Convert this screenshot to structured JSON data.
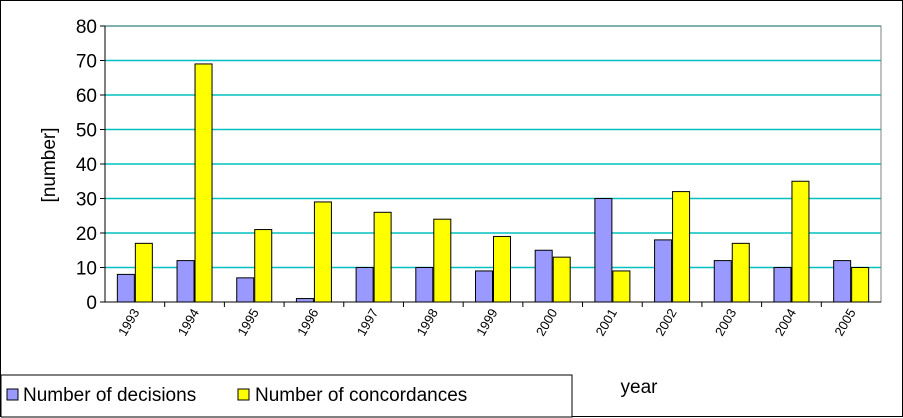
{
  "chart_data": {
    "type": "bar",
    "title": "",
    "xlabel": "year",
    "ylabel": "[number]",
    "ylim": [
      0,
      80
    ],
    "yticks": [
      0,
      10,
      20,
      30,
      40,
      50,
      60,
      70,
      80
    ],
    "grid": true,
    "legend_position": "bottom-left",
    "categories": [
      "1993",
      "1994",
      "1995",
      "1996",
      "1997",
      "1998",
      "1999",
      "2000",
      "2001",
      "2002",
      "2003",
      "2004",
      "2005"
    ],
    "series": [
      {
        "name": "Number of decisions",
        "color": "#9999ff",
        "values": [
          8,
          12,
          7,
          1,
          10,
          10,
          9,
          15,
          30,
          18,
          12,
          10,
          12
        ]
      },
      {
        "name": "Number of concordances",
        "color": "#ffff00",
        "values": [
          17,
          69,
          21,
          29,
          26,
          24,
          19,
          13,
          9,
          32,
          17,
          35,
          10
        ]
      }
    ]
  },
  "colors": {
    "gridline": "#00c0c0",
    "plot_border": "#808080",
    "bar_outline": "#000000"
  }
}
